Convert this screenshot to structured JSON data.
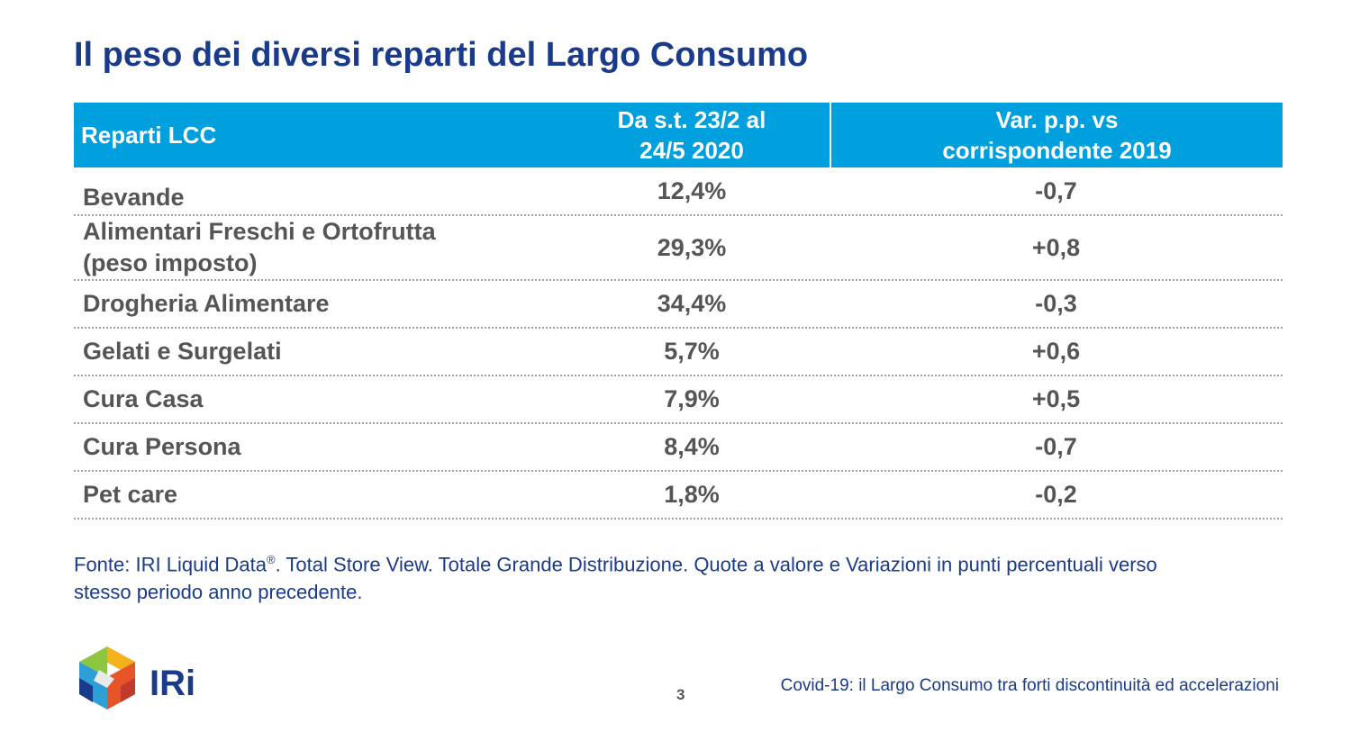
{
  "title": "Il peso dei diversi reparti del Largo Consumo",
  "table": {
    "headers": {
      "col1": "Reparti LCC",
      "col2_line1": "Da s.t. 23/2 al",
      "col2_line2": "24/5 2020",
      "col3_line1": "Var. p.p. vs",
      "col3_line2": "corrispondente 2019"
    },
    "rows": [
      {
        "name": "Bevande",
        "share": "12,4%",
        "var": "-0,7"
      },
      {
        "name_line1": "Alimentari Freschi e Ortofrutta",
        "name_line2": "(peso imposto)",
        "share": "29,3%",
        "var": "+0,8"
      },
      {
        "name": "Drogheria Alimentare",
        "share": "34,4%",
        "var": "-0,3"
      },
      {
        "name": "Gelati e Surgelati",
        "share": "5,7%",
        "var": "+0,6"
      },
      {
        "name": "Cura Casa",
        "share": "7,9%",
        "var": "+0,5"
      },
      {
        "name": "Cura Persona",
        "share": "8,4%",
        "var": "-0,7"
      },
      {
        "name": "Pet care",
        "share": "1,8%",
        "var": "-0,2"
      }
    ]
  },
  "source": {
    "part1": "Fonte: IRI Liquid Data",
    "reg": "®",
    "part2": ". Total Store View. Totale Grande Distribuzione. Quote a valore e Variazioni in punti percentuali verso stesso periodo anno precedente."
  },
  "footer": {
    "logo_text": "IRi",
    "page_number": "3",
    "caption": "Covid-19: il Largo Consumo tra forti discontinuità ed accelerazioni"
  },
  "colors": {
    "header_bg": "#009fdd",
    "title": "#1a3a8a",
    "body_text": "#555555"
  }
}
